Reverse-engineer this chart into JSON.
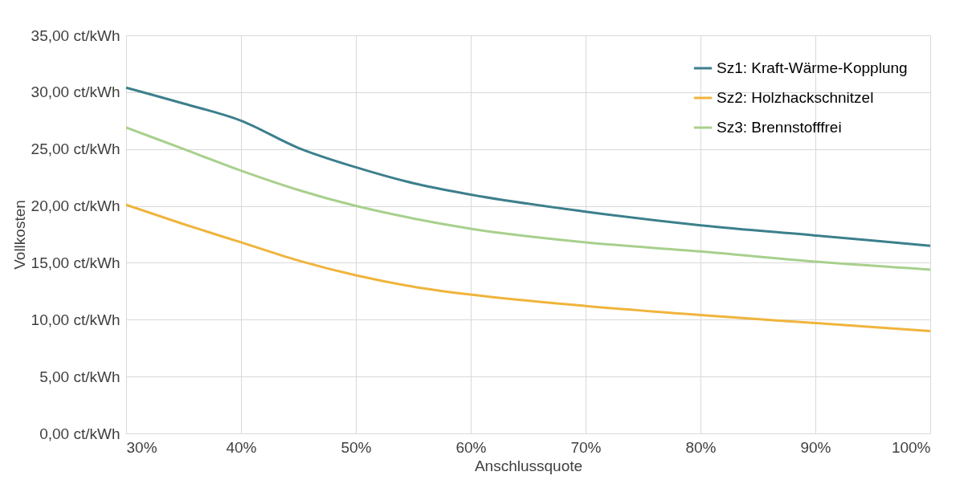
{
  "chart_data": {
    "type": "line",
    "xlabel": "Anschlussquote",
    "ylabel": "Vollkosten",
    "x": [
      30,
      35,
      40,
      45,
      50,
      55,
      60,
      70,
      80,
      90,
      100
    ],
    "series": [
      {
        "name": "Sz1: Kraft-Wärme-Kopplung",
        "color": "#3c7f8c",
        "values": [
          30.4,
          29.0,
          27.5,
          25.1,
          23.4,
          22.0,
          21.0,
          19.5,
          18.3,
          17.4,
          16.5
        ]
      },
      {
        "name": "Sz2: Holzhackschnitzel",
        "color": "#f0b43c",
        "values": [
          20.1,
          18.4,
          16.8,
          15.2,
          13.9,
          12.9,
          12.2,
          11.2,
          10.4,
          9.7,
          9.0
        ]
      },
      {
        "name": "Sz3: Brennstofffrei",
        "color": "#a8d08d",
        "values": [
          26.9,
          25.0,
          23.1,
          21.4,
          20.0,
          18.9,
          18.0,
          16.8,
          16.0,
          15.1,
          14.4
        ]
      }
    ],
    "xlim": [
      30,
      100
    ],
    "xticks": [
      {
        "value": 30,
        "label": "30%"
      },
      {
        "value": 40,
        "label": "40%"
      },
      {
        "value": 50,
        "label": "50%"
      },
      {
        "value": 60,
        "label": "60%"
      },
      {
        "value": 70,
        "label": "70%"
      },
      {
        "value": 80,
        "label": "80%"
      },
      {
        "value": 90,
        "label": "90%"
      },
      {
        "value": 100,
        "label": "100%"
      }
    ],
    "ylim": [
      0,
      35
    ],
    "yticks": [
      {
        "value": 0,
        "label": "0,00 ct/kWh"
      },
      {
        "value": 5,
        "label": "5,00 ct/kWh"
      },
      {
        "value": 10,
        "label": "10,00 ct/kWh"
      },
      {
        "value": 15,
        "label": "15,00 ct/kWh"
      },
      {
        "value": 20,
        "label": "20,00 ct/kWh"
      },
      {
        "value": 25,
        "label": "25,00 ct/kWh"
      },
      {
        "value": 30,
        "label": "30,00 ct/kWh"
      },
      {
        "value": 35,
        "label": "35,00 ct/kWh"
      }
    ],
    "grid": true,
    "legend": "top right",
    "marker": "none",
    "line_style": "solid"
  }
}
